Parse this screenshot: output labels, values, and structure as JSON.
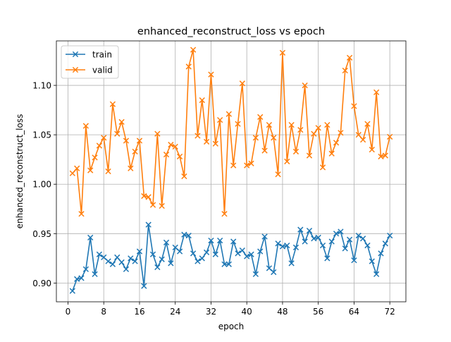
{
  "chart_data": {
    "type": "line",
    "title": "enhanced_reconstruct_loss vs epoch",
    "xlabel": "epoch",
    "ylabel": "enhanced_reconstruct_loss",
    "xlim": [
      -2.6,
      75.6
    ],
    "ylim": [
      0.881,
      1.145
    ],
    "xticks": [
      0,
      8,
      16,
      24,
      32,
      40,
      48,
      56,
      64,
      72
    ],
    "xtick_labels": [
      "0",
      "8",
      "16",
      "24",
      "32",
      "40",
      "48",
      "56",
      "64",
      "72"
    ],
    "yticks": [
      0.9,
      0.95,
      1.0,
      1.05,
      1.1
    ],
    "ytick_labels": [
      "0.90",
      "0.95",
      "1.00",
      "1.05",
      "1.10"
    ],
    "grid": true,
    "legend_position": "upper-left",
    "marker": "x",
    "x": [
      1,
      2,
      3,
      4,
      5,
      6,
      7,
      8,
      9,
      10,
      11,
      12,
      13,
      14,
      15,
      16,
      17,
      18,
      19,
      20,
      21,
      22,
      23,
      24,
      25,
      26,
      27,
      28,
      29,
      30,
      31,
      32,
      33,
      34,
      35,
      36,
      37,
      38,
      39,
      40,
      41,
      42,
      43,
      44,
      45,
      46,
      47,
      48,
      49,
      50,
      51,
      52,
      53,
      54,
      55,
      56,
      57,
      58,
      59,
      60,
      61,
      62,
      63,
      64,
      65,
      66,
      67,
      68,
      69,
      70,
      71,
      72
    ],
    "series": [
      {
        "name": "train",
        "color": "#1f77b4",
        "values": [
          0.892,
          0.904,
          0.905,
          0.914,
          0.946,
          0.909,
          0.929,
          0.926,
          0.922,
          0.919,
          0.926,
          0.921,
          0.914,
          0.925,
          0.922,
          0.932,
          0.897,
          0.959,
          0.929,
          0.916,
          0.924,
          0.941,
          0.92,
          0.936,
          0.932,
          0.949,
          0.948,
          0.93,
          0.922,
          0.925,
          0.931,
          0.943,
          0.929,
          0.943,
          0.919,
          0.919,
          0.942,
          0.93,
          0.933,
          0.927,
          0.929,
          0.909,
          0.932,
          0.947,
          0.915,
          0.911,
          0.94,
          0.937,
          0.938,
          0.92,
          0.936,
          0.954,
          0.942,
          0.953,
          0.945,
          0.946,
          0.938,
          0.925,
          0.942,
          0.95,
          0.952,
          0.935,
          0.944,
          0.923,
          0.948,
          0.945,
          0.938,
          0.922,
          0.909,
          0.93,
          0.94,
          0.948
        ]
      },
      {
        "name": "valid",
        "color": "#ff7f0e",
        "values": [
          1.011,
          1.016,
          0.97,
          1.059,
          1.014,
          1.027,
          1.039,
          1.047,
          1.013,
          1.081,
          1.051,
          1.063,
          1.044,
          1.016,
          1.033,
          1.044,
          0.988,
          0.987,
          0.979,
          1.051,
          0.978,
          1.03,
          1.04,
          1.038,
          1.028,
          1.008,
          1.119,
          1.136,
          1.049,
          1.085,
          1.043,
          1.111,
          1.041,
          1.065,
          0.97,
          1.071,
          1.019,
          1.061,
          1.102,
          1.019,
          1.021,
          1.047,
          1.068,
          1.034,
          1.06,
          1.047,
          1.01,
          1.133,
          1.023,
          1.06,
          1.033,
          1.055,
          1.1,
          1.029,
          1.051,
          1.057,
          1.017,
          1.06,
          1.031,
          1.042,
          1.052,
          1.115,
          1.128,
          1.079,
          1.05,
          1.045,
          1.061,
          1.035,
          1.093,
          1.028,
          1.029,
          1.048
        ]
      }
    ]
  }
}
